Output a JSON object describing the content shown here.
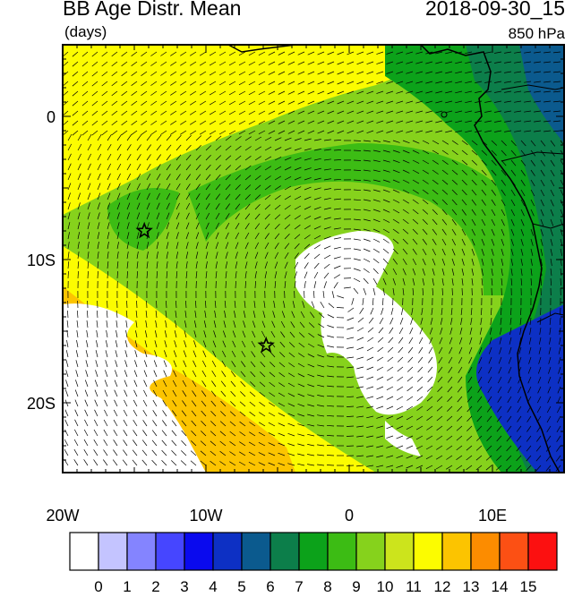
{
  "title": "BB Age Distr. Mean",
  "units": "(days)",
  "valid_time": "2018-09-30_15",
  "level": "850 hPa",
  "lat_labels": [
    "0",
    "10S",
    "20S"
  ],
  "lon_labels": [
    "20W",
    "10W",
    "0",
    "10E"
  ],
  "colorbar": {
    "labels": [
      "0",
      "1",
      "2",
      "3",
      "4",
      "5",
      "6",
      "7",
      "8",
      "9",
      "10",
      "11",
      "12",
      "13",
      "14",
      "15"
    ],
    "colors": [
      "#ffffff",
      "#c4c4ff",
      "#8484ff",
      "#4646ff",
      "#0a0aee",
      "#0d30c4",
      "#0b5a8e",
      "#0c7e4a",
      "#0ca21a",
      "#3cbc14",
      "#86d21c",
      "#cce41c",
      "#fcfc00",
      "#fcc400",
      "#fc8c00",
      "#fc5014",
      "#fc1010"
    ]
  },
  "markers": [
    {
      "name": "star-marker",
      "lon": -14.3,
      "lat": -8.0
    },
    {
      "name": "star-marker",
      "lon": -5.8,
      "lat": -16.0
    }
  ]
}
